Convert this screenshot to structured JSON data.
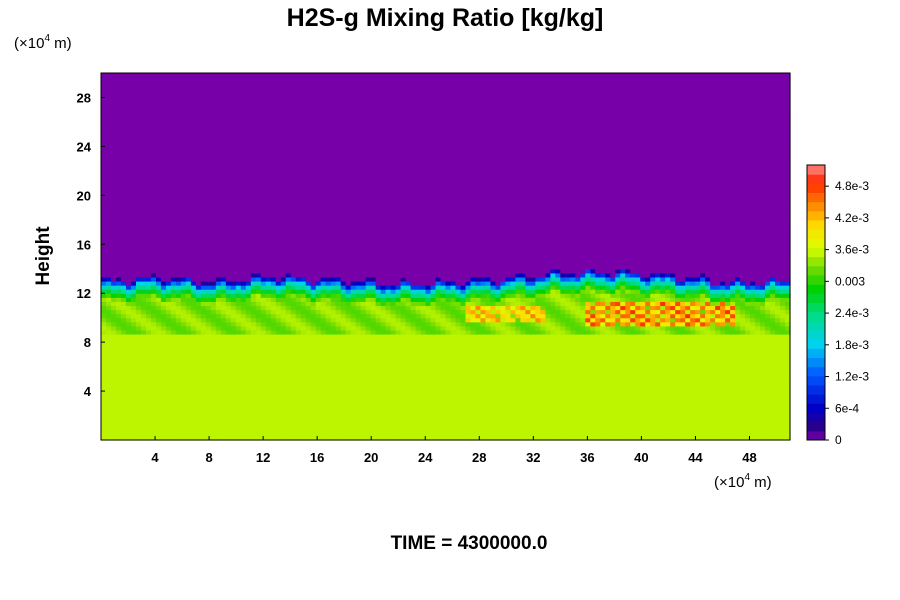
{
  "chart_data": {
    "type": "heatmap",
    "title": "H2S-g Mixing Ratio [kg/kg]",
    "xlabel": "",
    "ylabel": "Height",
    "x_unit": {
      "prefix": "(×10",
      "exp": "4",
      "suffix": " m)"
    },
    "y_unit": {
      "prefix": "(×10",
      "exp": "4",
      "suffix": " m)"
    },
    "xlim": [
      0,
      51
    ],
    "ylim": [
      0,
      30
    ],
    "x_ticks": [
      4,
      8,
      12,
      16,
      20,
      24,
      28,
      32,
      36,
      40,
      44,
      48
    ],
    "y_ticks": [
      4,
      8,
      12,
      16,
      20,
      24,
      28
    ],
    "colorbar": {
      "range": [
        0,
        0.0052
      ],
      "tick_values": [
        0,
        0.0006,
        0.0012,
        0.0018,
        0.0024,
        0.003,
        0.0036,
        0.0042,
        0.0048
      ],
      "tick_labels": [
        "0",
        "6e-4",
        "1.2e-3",
        "1.8e-3",
        "2.4e-3",
        "0.003",
        "3.6e-3",
        "4.2e-3",
        "4.8e-3"
      ]
    },
    "field_description_values": {
      "lower_layer_value": 0.0036,
      "upper_layer_value": 0,
      "interface_height_approx": [
        12.5,
        12.8,
        12.4,
        12.9,
        12.6,
        12.3,
        12.4,
        12.7,
        13.2,
        13.3,
        12.9,
        12.4,
        12.6
      ]
    },
    "footer": "TIME = 4300000.0"
  }
}
